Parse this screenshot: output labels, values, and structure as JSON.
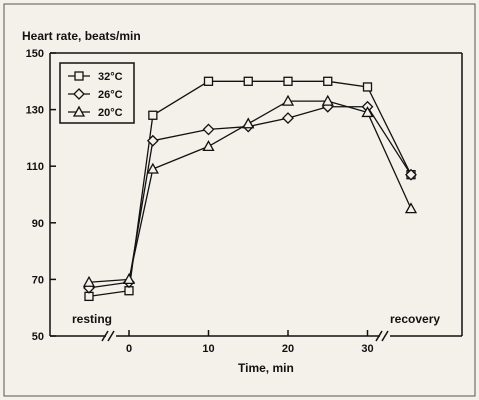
{
  "chart_data": {
    "type": "line",
    "ylabel": "Heart rate, beats/min",
    "xlabel": "Time, min",
    "ylim": [
      50,
      150
    ],
    "yticks": [
      50,
      70,
      90,
      110,
      130,
      150
    ],
    "xticks": [
      0,
      10,
      20,
      30
    ],
    "x_categories": [
      "resting",
      "0",
      "3",
      "10",
      "15",
      "20",
      "25",
      "30",
      "recovery"
    ],
    "xtick_labels": [
      "0",
      "10",
      "20",
      "30"
    ],
    "resting_label": "resting",
    "recovery_label": "recovery",
    "legend_position": "top-left",
    "series": [
      {
        "name": "32°C",
        "marker": "square",
        "x": [
          "resting",
          0,
          3,
          10,
          15,
          20,
          25,
          30,
          "recovery"
        ],
        "values": [
          64,
          66,
          128,
          140,
          140,
          140,
          140,
          138,
          107
        ]
      },
      {
        "name": "26°C",
        "marker": "diamond",
        "x": [
          "resting",
          0,
          3,
          10,
          15,
          20,
          25,
          30,
          "recovery"
        ],
        "values": [
          67,
          69,
          119,
          123,
          124,
          127,
          131,
          131,
          107
        ]
      },
      {
        "name": "20°C",
        "marker": "triangle",
        "x": [
          "resting",
          0,
          3,
          10,
          15,
          20,
          25,
          30,
          "recovery"
        ],
        "values": [
          69,
          70,
          109,
          117,
          125,
          133,
          133,
          129,
          95
        ]
      }
    ]
  }
}
